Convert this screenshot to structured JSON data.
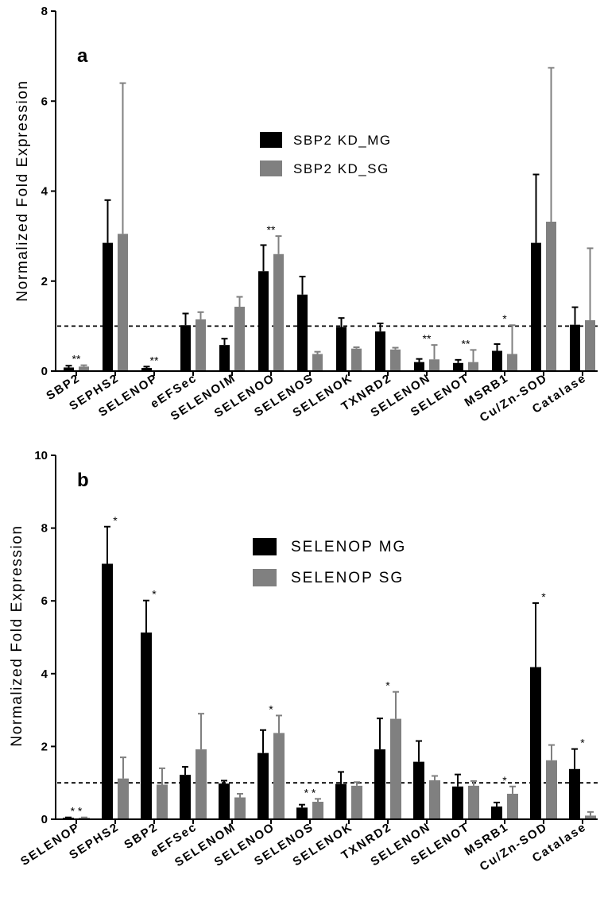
{
  "colors": {
    "series1": "#000000",
    "series2": "#808080",
    "axis": "#000000"
  },
  "chart_data": [
    {
      "type": "bar",
      "panel": "a",
      "ylabel": "Normalized Fold Expression",
      "ylim": [
        0,
        8
      ],
      "yticks": [
        0,
        2,
        4,
        6,
        8
      ],
      "reference_line": 1,
      "categories": [
        "SBP2",
        "SEPHS2",
        "SELENOP",
        "eEFSec",
        "SELENOIM",
        "SELENOO",
        "SELENOS",
        "SELENOK",
        "TXNRD2",
        "SELENON",
        "SELENOT",
        "MSRB1",
        "Cu/Zn-SOD",
        "Catalase"
      ],
      "series": [
        {
          "name": "SBP2 KD_MG",
          "values": [
            0.08,
            2.85,
            0.07,
            1.02,
            0.58,
            2.22,
            1.7,
            0.98,
            0.88,
            0.2,
            0.18,
            0.45,
            2.85,
            1.03
          ],
          "errors": [
            0.04,
            0.95,
            0.03,
            0.26,
            0.14,
            0.58,
            0.4,
            0.2,
            0.18,
            0.07,
            0.07,
            0.15,
            1.52,
            0.39
          ]
        },
        {
          "name": "SBP2 KD_SG",
          "values": [
            0.1,
            3.05,
            0.02,
            1.15,
            1.43,
            2.6,
            0.38,
            0.5,
            0.48,
            0.26,
            0.2,
            0.38,
            3.32,
            1.13
          ],
          "errors": [
            0.03,
            3.35,
            0.0,
            0.16,
            0.22,
            0.4,
            0.05,
            0.03,
            0.04,
            0.32,
            0.27,
            0.64,
            3.42,
            1.6
          ]
        }
      ],
      "annotations": [
        {
          "category": "SBP2",
          "text": "**"
        },
        {
          "category": "SELENOP",
          "text": "**"
        },
        {
          "category": "SELENOO",
          "text": "**"
        },
        {
          "category": "SELENON",
          "text": "**"
        },
        {
          "category": "SELENOT",
          "text": "**"
        },
        {
          "category": "MSRB1",
          "text": "*"
        }
      ]
    },
    {
      "type": "bar",
      "panel": "b",
      "ylabel": "Normalized Fold Expression",
      "ylim": [
        0,
        10
      ],
      "yticks": [
        0,
        2,
        4,
        6,
        8,
        10
      ],
      "reference_line": 1,
      "categories": [
        "SELENOP",
        "SEPHS2",
        "SBP2",
        "eEFSec",
        "SELENOM",
        "SELENOO",
        "SELENOS",
        "SELENOK",
        "TXNRD2",
        "SELENON",
        "SELENOT",
        "MSRB1",
        "Cu/Zn-SOD",
        "Catalase"
      ],
      "series": [
        {
          "name": "SELENOP MG",
          "values": [
            0.04,
            7.02,
            5.13,
            1.22,
            0.98,
            1.82,
            0.32,
            0.97,
            1.92,
            1.58,
            0.9,
            0.35,
            4.18,
            1.38
          ],
          "errors": [
            0.01,
            1.02,
            0.88,
            0.22,
            0.08,
            0.63,
            0.08,
            0.33,
            0.85,
            0.57,
            0.33,
            0.11,
            1.76,
            0.55
          ]
        },
        {
          "name": "SELENOP SG",
          "values": [
            0.04,
            1.12,
            0.95,
            1.92,
            0.6,
            2.37,
            0.48,
            0.92,
            2.76,
            1.07,
            0.92,
            0.7,
            1.62,
            0.1
          ],
          "errors": [
            0.01,
            0.58,
            0.45,
            0.98,
            0.1,
            0.48,
            0.08,
            0.1,
            0.74,
            0.12,
            0.13,
            0.2,
            0.42,
            0.1
          ]
        }
      ],
      "annotations": [
        {
          "category": "SELENOP",
          "text": "* *"
        },
        {
          "category": "SEPHS2",
          "text": "*"
        },
        {
          "category": "SBP2",
          "text": "*"
        },
        {
          "category": "SELENOO",
          "text": "*"
        },
        {
          "category": "SELENOS",
          "text": "* *"
        },
        {
          "category": "TXNRD2",
          "text": "*"
        },
        {
          "category": "MSRB1",
          "text": "*"
        },
        {
          "category": "Cu/Zn-SOD",
          "text": "*"
        },
        {
          "category": "Catalase",
          "text": "*"
        }
      ]
    }
  ]
}
